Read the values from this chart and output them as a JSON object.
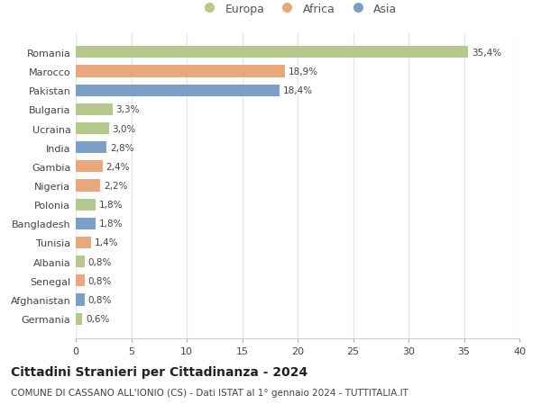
{
  "countries": [
    "Romania",
    "Marocco",
    "Pakistan",
    "Bulgaria",
    "Ucraina",
    "India",
    "Gambia",
    "Nigeria",
    "Polonia",
    "Bangladesh",
    "Tunisia",
    "Albania",
    "Senegal",
    "Afghanistan",
    "Germania"
  ],
  "values": [
    35.4,
    18.9,
    18.4,
    3.3,
    3.0,
    2.8,
    2.4,
    2.2,
    1.8,
    1.8,
    1.4,
    0.8,
    0.8,
    0.8,
    0.6
  ],
  "labels": [
    "35,4%",
    "18,9%",
    "18,4%",
    "3,3%",
    "3,0%",
    "2,8%",
    "2,4%",
    "2,2%",
    "1,8%",
    "1,8%",
    "1,4%",
    "0,8%",
    "0,8%",
    "0,8%",
    "0,6%"
  ],
  "continents": [
    "Europa",
    "Africa",
    "Asia",
    "Europa",
    "Europa",
    "Asia",
    "Africa",
    "Africa",
    "Europa",
    "Asia",
    "Africa",
    "Europa",
    "Africa",
    "Asia",
    "Europa"
  ],
  "colors": {
    "Europa": "#b5c98e",
    "Africa": "#e8a87c",
    "Asia": "#7b9fc7"
  },
  "legend_order": [
    "Europa",
    "Africa",
    "Asia"
  ],
  "title": "Cittadini Stranieri per Cittadinanza - 2024",
  "subtitle": "COMUNE DI CASSANO ALL'IONIO (CS) - Dati ISTAT al 1° gennaio 2024 - TUTTITALIA.IT",
  "xlim": [
    0,
    40
  ],
  "xticks": [
    0,
    5,
    10,
    15,
    20,
    25,
    30,
    35,
    40
  ],
  "background_color": "#ffffff",
  "grid_color": "#e8e8e8",
  "title_fontsize": 10,
  "subtitle_fontsize": 7.5,
  "label_fontsize": 7.5,
  "tick_fontsize": 8,
  "legend_fontsize": 9
}
